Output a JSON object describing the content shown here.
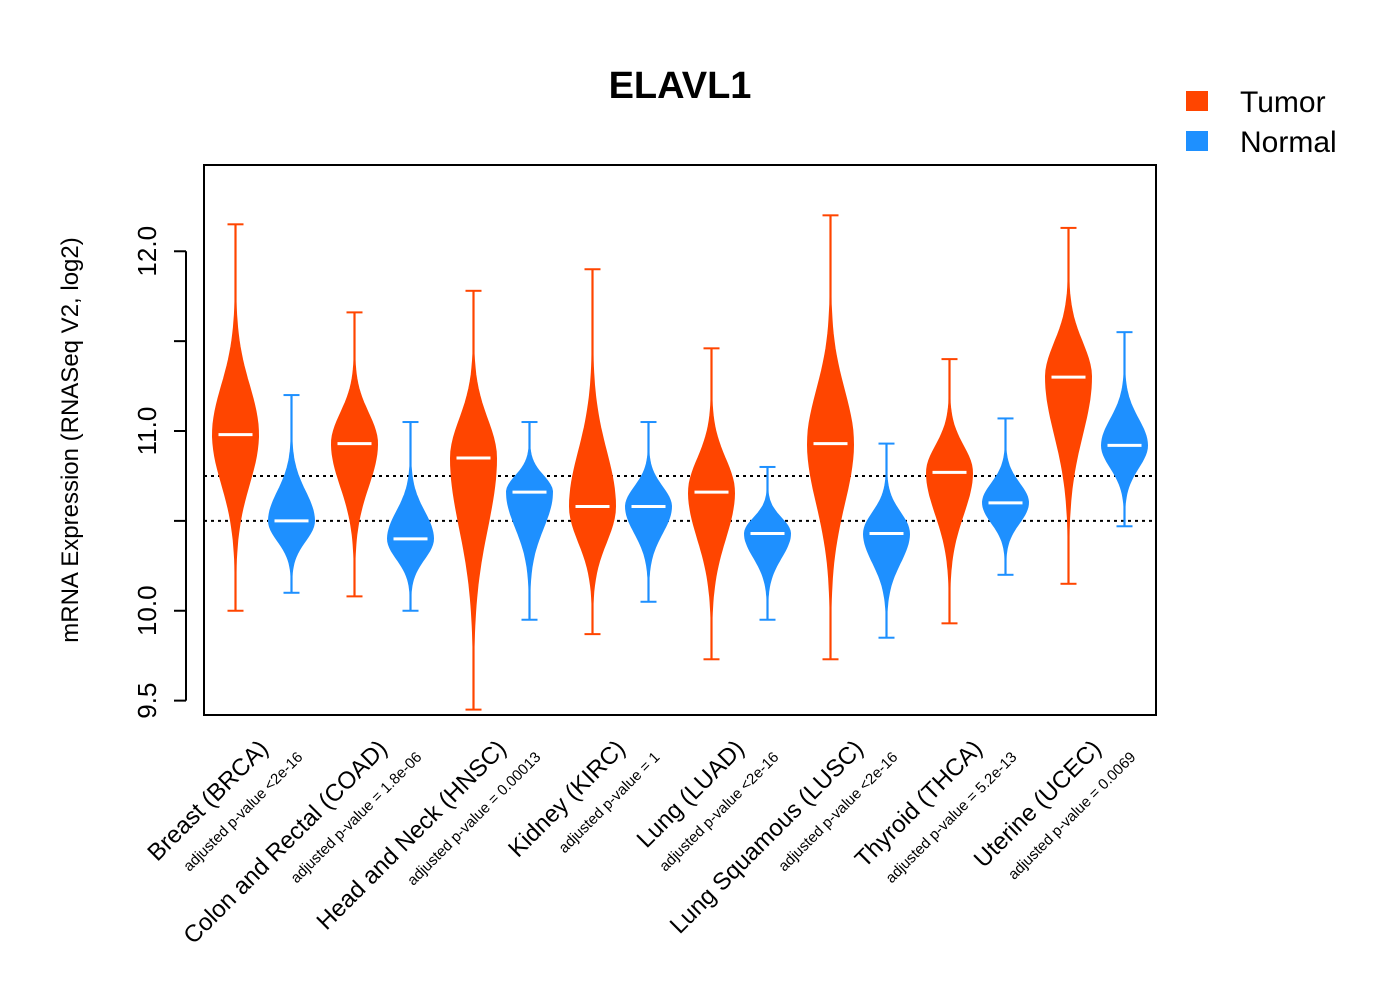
{
  "chart_data": {
    "type": "violin",
    "title": "ELAVL1",
    "ylabel": "mRNA Expression (RNASeq V2, log2)",
    "xlabel": "",
    "ylim": [
      9.42,
      12.48
    ],
    "yticks": [
      9.5,
      10.0,
      10.5,
      11.0,
      11.5,
      12.0
    ],
    "yticklabels": [
      "9.5",
      "10.0",
      "",
      "11.0",
      "",
      "12.0"
    ],
    "reference_lines": [
      10.75,
      10.5
    ],
    "legend": {
      "placement": "top-right",
      "items": [
        {
          "label": "Tumor",
          "color": "#FF4500"
        },
        {
          "label": "Normal",
          "color": "#1E90FF"
        }
      ]
    },
    "colors": {
      "tumor": "#FF4500",
      "normal": "#1E90FF"
    },
    "categories": [
      {
        "name": "Breast (BRCA)",
        "pvalue": "adjusted p-value <2e-16",
        "tumor": {
          "min": 10.0,
          "max": 12.15,
          "median": 10.98
        },
        "normal": {
          "min": 10.1,
          "max": 11.2,
          "median": 10.5
        }
      },
      {
        "name": "Colon and Rectal (COAD)",
        "pvalue": "adjusted p-value = 1.8e-06",
        "tumor": {
          "min": 10.08,
          "max": 11.66,
          "median": 10.93
        },
        "normal": {
          "min": 10.0,
          "max": 11.05,
          "median": 10.4
        }
      },
      {
        "name": "Head and Neck (HNSC)",
        "pvalue": "adjusted p-value = 0.00013",
        "tumor": {
          "min": 9.45,
          "max": 11.78,
          "median": 10.85
        },
        "normal": {
          "min": 9.95,
          "max": 11.05,
          "median": 10.66
        }
      },
      {
        "name": "Kidney (KIRC)",
        "pvalue": "adjusted p-value = 1",
        "tumor": {
          "min": 9.87,
          "max": 11.9,
          "median": 10.58
        },
        "normal": {
          "min": 10.05,
          "max": 11.05,
          "median": 10.58
        }
      },
      {
        "name": "Lung (LUAD)",
        "pvalue": "adjusted p-value <2e-16",
        "tumor": {
          "min": 9.73,
          "max": 11.46,
          "median": 10.66
        },
        "normal": {
          "min": 9.95,
          "max": 10.8,
          "median": 10.43
        }
      },
      {
        "name": "Lung Squamous (LUSC)",
        "pvalue": "adjusted p-value <2e-16",
        "tumor": {
          "min": 9.73,
          "max": 12.2,
          "median": 10.93
        },
        "normal": {
          "min": 9.85,
          "max": 10.93,
          "median": 10.43
        }
      },
      {
        "name": "Thyroid (THCA)",
        "pvalue": "adjusted p-value = 5.2e-13",
        "tumor": {
          "min": 9.93,
          "max": 11.4,
          "median": 10.77
        },
        "normal": {
          "min": 10.2,
          "max": 11.07,
          "median": 10.6
        }
      },
      {
        "name": "Uterine (UCEC)",
        "pvalue": "adjusted p-value = 0.0069",
        "tumor": {
          "min": 10.15,
          "max": 12.13,
          "median": 11.3
        },
        "normal": {
          "min": 10.47,
          "max": 11.55,
          "median": 10.92
        }
      }
    ]
  }
}
